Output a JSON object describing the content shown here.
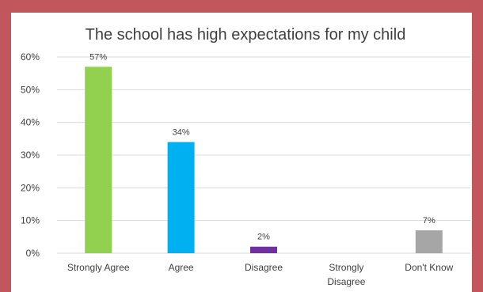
{
  "chart_data": {
    "type": "bar",
    "title": "The school has high expectations for my child",
    "categories": [
      "Strongly Agree",
      "Agree",
      "Disagree",
      "Strongly Disagree",
      "Don't Know"
    ],
    "category_lines": [
      [
        "Strongly Agree"
      ],
      [
        "Agree"
      ],
      [
        "Disagree"
      ],
      [
        "Strongly",
        "Disagree"
      ],
      [
        "Don't Know"
      ]
    ],
    "values": [
      57,
      34,
      2,
      0,
      7
    ],
    "data_labels": [
      "57%",
      "34%",
      "2%",
      "",
      "7%"
    ],
    "colors": [
      "#92d050",
      "#00b0f0",
      "#7030a0",
      "#7030a0",
      "#a6a6a6"
    ],
    "ylim": [
      0,
      60
    ],
    "yticks": [
      0,
      10,
      20,
      30,
      40,
      50,
      60
    ],
    "ytick_labels": [
      "0%",
      "10%",
      "20%",
      "30%",
      "40%",
      "50%",
      "60%"
    ],
    "grid": true,
    "legend": "none",
    "xlabel": "",
    "ylabel": ""
  }
}
